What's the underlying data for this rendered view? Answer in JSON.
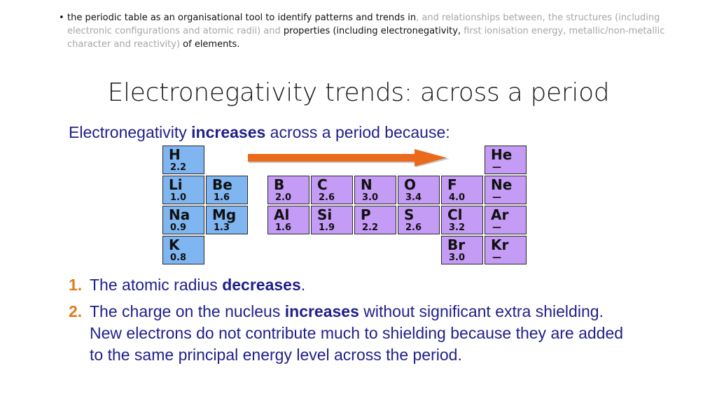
{
  "syllabus": {
    "bullet": "•",
    "part1": "the periodic table as an organisational tool to identify patterns and trends in",
    "part2": ", and relationships between, the structures (including electronic configurations and atomic radii) and",
    "part3": " properties (including electronegativity,",
    "part4": " first ionisation energy, metallic/non-metallic character and reactivity)",
    "part5": " of elements."
  },
  "title": "Electronegativity trends: across a period",
  "intro": {
    "pre": "Electronegativity",
    "bold": "increases",
    "post": "across a period because:"
  },
  "table": {
    "cells": [
      {
        "symbol": "H",
        "value": "2.2",
        "group": "s"
      },
      {
        "symbol": "Li",
        "value": "1.0",
        "group": "s"
      },
      {
        "symbol": "Be",
        "value": "1.6",
        "group": "s"
      },
      {
        "symbol": "Na",
        "value": "0.9",
        "group": "s"
      },
      {
        "symbol": "Mg",
        "value": "1.3",
        "group": "s"
      },
      {
        "symbol": "K",
        "value": "0.8",
        "group": "s"
      },
      {
        "symbol": "He",
        "value": "—",
        "group": "p"
      },
      {
        "symbol": "B",
        "value": "2.0",
        "group": "p"
      },
      {
        "symbol": "C",
        "value": "2.6",
        "group": "p"
      },
      {
        "symbol": "N",
        "value": "3.0",
        "group": "p"
      },
      {
        "symbol": "O",
        "value": "3.4",
        "group": "p"
      },
      {
        "symbol": "F",
        "value": "4.0",
        "group": "p"
      },
      {
        "symbol": "Ne",
        "value": "—",
        "group": "p"
      },
      {
        "symbol": "Al",
        "value": "1.6",
        "group": "p"
      },
      {
        "symbol": "Si",
        "value": "1.9",
        "group": "p"
      },
      {
        "symbol": "P",
        "value": "2.2",
        "group": "p"
      },
      {
        "symbol": "S",
        "value": "2.6",
        "group": "p"
      },
      {
        "symbol": "Cl",
        "value": "3.2",
        "group": "p"
      },
      {
        "symbol": "Ar",
        "value": "—",
        "group": "p"
      },
      {
        "symbol": "Br",
        "value": "3.0",
        "group": "p"
      },
      {
        "symbol": "Kr",
        "value": "—",
        "group": "p"
      }
    ]
  },
  "arrow_icon": "right-arrow-icon",
  "colors": {
    "s_block": "#7fb5f0",
    "p_block": "#c49bf5",
    "arrow": "#e96a1a",
    "text": "#1f1f8a",
    "number": "#e07c1a"
  },
  "points": [
    {
      "num": "1.",
      "pre": "The atomic radius",
      "bold": "decreases",
      "post": "."
    },
    {
      "num": "2.",
      "pre": "The charge on the nucleus",
      "bold": "increases",
      "post": "without significant extra shielding. New electrons do not contribute much to shielding because they are added to the same principal energy level across the period."
    }
  ]
}
